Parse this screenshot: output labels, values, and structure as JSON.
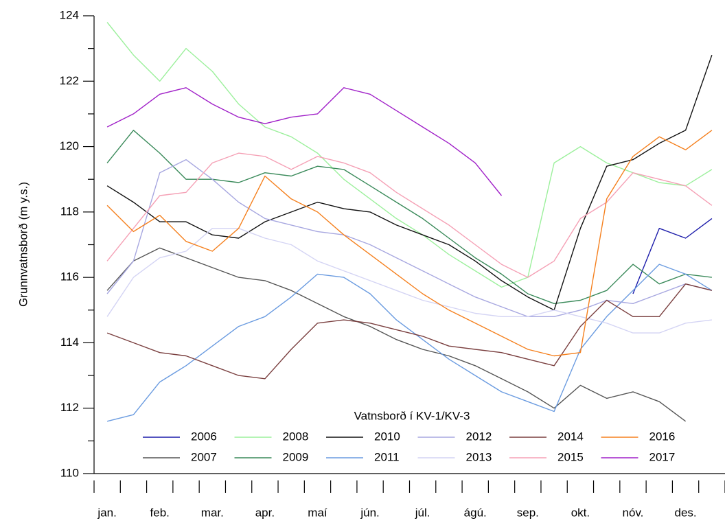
{
  "chart_data": {
    "type": "line",
    "y_label": "Grunnvatnsborð (m y.s.)",
    "legend_title": "Vatnsborð í KV-1/KV-3",
    "categories": [
      "jan.",
      null,
      "feb.",
      null,
      "mar.",
      null,
      "apr.",
      null,
      "maí",
      null,
      "jún.",
      null,
      "júl.",
      null,
      "ágú.",
      null,
      "sep.",
      null,
      "okt.",
      null,
      "nóv.",
      null,
      "des.",
      null
    ],
    "ylim": [
      110,
      124
    ],
    "yticks": [
      110,
      112,
      114,
      116,
      118,
      120,
      122,
      124
    ],
    "series": [
      {
        "name": "2006",
        "color": "#1c1caa",
        "values": [
          null,
          null,
          null,
          null,
          null,
          null,
          null,
          null,
          null,
          null,
          null,
          null,
          null,
          null,
          null,
          null,
          null,
          null,
          null,
          null,
          115.5,
          117.5,
          117.2,
          117.8
        ]
      },
      {
        "name": "2007",
        "color": "#555555",
        "values": [
          115.6,
          116.5,
          116.9,
          116.6,
          116.3,
          116.0,
          115.9,
          115.6,
          115.2,
          114.8,
          114.5,
          114.1,
          113.8,
          113.6,
          113.3,
          112.9,
          112.5,
          112.0,
          112.7,
          112.3,
          112.5,
          112.2,
          111.6,
          null
        ]
      },
      {
        "name": "2008",
        "color": "#9cf09c",
        "values": [
          123.8,
          122.8,
          122.0,
          123.0,
          122.3,
          121.3,
          120.6,
          120.3,
          119.8,
          119.0,
          118.4,
          117.8,
          117.3,
          116.7,
          116.2,
          115.7,
          116.0,
          119.5,
          120.0,
          119.5,
          119.2,
          118.9,
          118.8,
          119.3
        ]
      },
      {
        "name": "2009",
        "color": "#3a8a5a",
        "values": [
          119.5,
          120.5,
          119.8,
          119.0,
          119.0,
          118.9,
          119.2,
          119.1,
          119.4,
          119.3,
          118.8,
          118.3,
          117.8,
          117.2,
          116.6,
          116.1,
          115.5,
          115.2,
          115.3,
          115.6,
          116.4,
          115.8,
          116.1,
          116.0
        ]
      },
      {
        "name": "2010",
        "color": "#111111",
        "values": [
          118.8,
          118.3,
          117.7,
          117.7,
          117.3,
          117.2,
          117.7,
          118.0,
          118.3,
          118.1,
          118.0,
          117.6,
          117.3,
          117.0,
          116.5,
          115.9,
          115.4,
          115.0,
          117.5,
          119.4,
          119.6,
          120.1,
          120.5,
          122.8
        ]
      },
      {
        "name": "2011",
        "color": "#6a9be0",
        "values": [
          111.6,
          111.8,
          112.8,
          113.3,
          113.9,
          114.5,
          114.8,
          115.4,
          116.1,
          116.0,
          115.5,
          114.7,
          114.1,
          113.5,
          113.0,
          112.5,
          112.2,
          111.9,
          113.8,
          114.8,
          115.6,
          116.4,
          116.1,
          115.6
        ]
      },
      {
        "name": "2012",
        "color": "#a7a7e0",
        "values": [
          115.5,
          116.5,
          119.2,
          119.6,
          119.0,
          118.3,
          117.8,
          117.6,
          117.4,
          117.3,
          117.0,
          116.6,
          116.2,
          115.8,
          115.4,
          115.1,
          114.8,
          114.8,
          115.0,
          115.3,
          115.2,
          115.5,
          115.8,
          115.6
        ]
      },
      {
        "name": "2013",
        "color": "#d4d4f4",
        "values": [
          114.8,
          116.0,
          116.6,
          116.8,
          117.5,
          117.5,
          117.2,
          117.0,
          116.5,
          116.2,
          115.9,
          115.6,
          115.3,
          115.1,
          114.9,
          114.8,
          114.8,
          115.0,
          114.8,
          114.6,
          114.3,
          114.3,
          114.6,
          114.7
        ]
      },
      {
        "name": "2014",
        "color": "#7a3f3f",
        "values": [
          114.3,
          114.0,
          113.7,
          113.6,
          113.3,
          113.0,
          112.9,
          113.8,
          114.6,
          114.7,
          114.6,
          114.4,
          114.2,
          113.9,
          113.8,
          113.7,
          113.5,
          113.3,
          114.5,
          115.3,
          114.8,
          114.8,
          115.8,
          115.6
        ]
      },
      {
        "name": "2015",
        "color": "#f5a0b5",
        "values": [
          116.5,
          117.5,
          118.5,
          118.6,
          119.5,
          119.8,
          119.7,
          119.3,
          119.7,
          119.5,
          119.2,
          118.6,
          118.1,
          117.6,
          117.0,
          116.4,
          116.0,
          116.5,
          117.8,
          118.3,
          119.2,
          119.0,
          118.8,
          118.2
        ]
      },
      {
        "name": "2016",
        "color": "#f5801e",
        "values": [
          118.2,
          117.4,
          117.9,
          117.1,
          116.8,
          117.5,
          119.1,
          118.4,
          118.0,
          117.3,
          116.7,
          116.1,
          115.5,
          115.0,
          114.6,
          114.2,
          113.8,
          113.6,
          113.7,
          118.4,
          119.7,
          120.3,
          119.9,
          120.5
        ]
      },
      {
        "name": "2017",
        "color": "#a020c8",
        "values": [
          120.6,
          121.0,
          121.6,
          121.8,
          121.3,
          120.9,
          120.7,
          120.9,
          121.0,
          121.8,
          121.6,
          121.1,
          120.6,
          120.1,
          119.5,
          118.5,
          null,
          null,
          null,
          null,
          null,
          null,
          null,
          null
        ]
      }
    ]
  }
}
